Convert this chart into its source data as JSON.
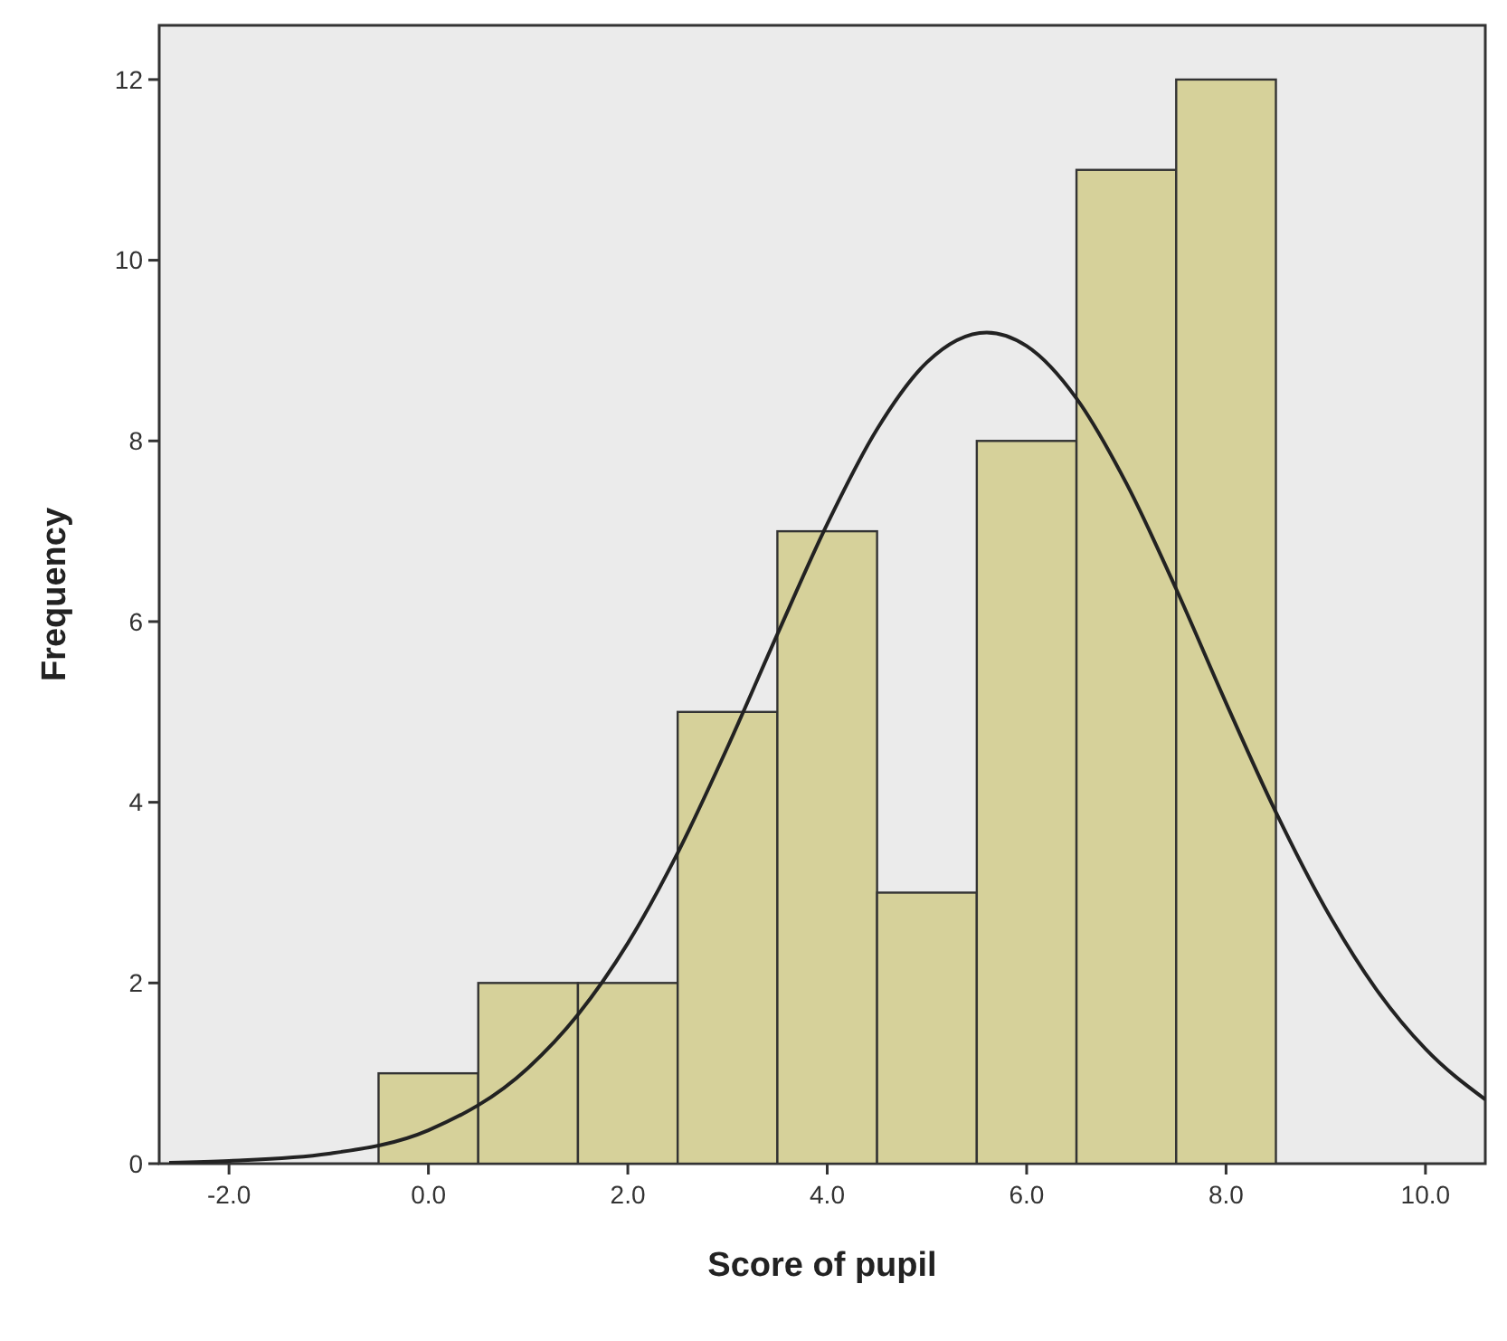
{
  "chart_data": {
    "type": "histogram",
    "xlabel": "Score of pupil",
    "ylabel": "Frequency",
    "bins": [
      -0.5,
      0.5,
      1.5,
      2.5,
      3.5,
      4.5,
      5.5,
      6.5,
      7.5,
      8.5
    ],
    "values": [
      1,
      2,
      2,
      5,
      7,
      3,
      8,
      11,
      12
    ],
    "color": "#d6d19a",
    "series": [
      {
        "type": "line",
        "color": "#222222",
        "x": [
          -2.6,
          -2,
          -1,
          0,
          1,
          1.5,
          2,
          2.5,
          3,
          3.5,
          4,
          4.5,
          5,
          5.6,
          6,
          6.5,
          7,
          7.5,
          8,
          8.5,
          9,
          9.5,
          10,
          10.6
        ],
        "values": [
          0.01,
          0.03,
          0.11,
          0.37,
          1.06,
          1.65,
          2.44,
          3.44,
          4.61,
          5.86,
          7.08,
          8.13,
          8.87,
          9.2,
          9.05,
          8.47,
          7.53,
          6.36,
          5.1,
          3.89,
          2.82,
          1.94,
          1.27,
          0.71
        ]
      }
    ],
    "xlim": [
      -2.7,
      10.6
    ],
    "ylim": [
      0,
      12.6
    ],
    "xticks": [
      {
        "value": -2,
        "label": "-2.0"
      },
      {
        "value": 0,
        "label": "0.0"
      },
      {
        "value": 2,
        "label": "2.0"
      },
      {
        "value": 4,
        "label": "4.0"
      },
      {
        "value": 6,
        "label": "6.0"
      },
      {
        "value": 8,
        "label": "8.0"
      },
      {
        "value": 10,
        "label": "10.0"
      }
    ],
    "yticks": [
      0,
      2,
      4,
      6,
      8,
      10,
      12
    ],
    "marker": "none",
    "line_style": "solid"
  }
}
